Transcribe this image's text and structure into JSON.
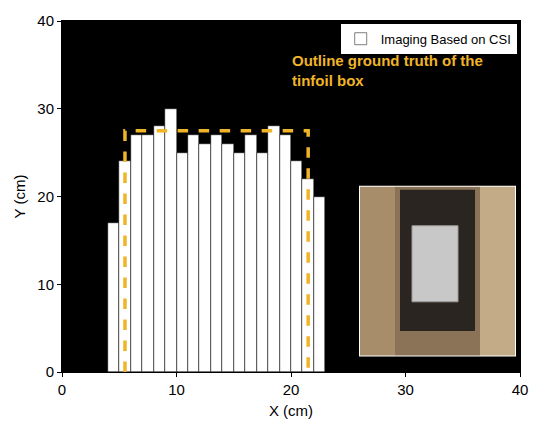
{
  "chart_data": {
    "type": "bar",
    "xlabel": "X (cm)",
    "ylabel": "Y (cm)",
    "xlim": [
      0,
      40
    ],
    "ylim": [
      0,
      40
    ],
    "xticks": [
      0,
      10,
      20,
      30,
      40
    ],
    "yticks": [
      0,
      10,
      20,
      30,
      40
    ],
    "grid": false,
    "legend": "upper right",
    "series": [
      {
        "name": "Imaging Based on CSI",
        "type": "bar",
        "color": "#ffffff",
        "x": [
          4.5,
          5.5,
          6.5,
          7.5,
          8.5,
          9.5,
          10.5,
          11.5,
          12.5,
          13.5,
          14.5,
          15.5,
          16.5,
          17.5,
          18.5,
          19.5,
          20.5,
          21.5,
          22.5
        ],
        "values": [
          17,
          24,
          27,
          27,
          28,
          30,
          25,
          27,
          26,
          27,
          26,
          25,
          27,
          25,
          28,
          27,
          24,
          22,
          20
        ]
      }
    ],
    "outline": {
      "x": [
        5.5,
        5.5,
        21.5,
        21.5
      ],
      "y": [
        0,
        27.5,
        27.5,
        0
      ],
      "color": "#f0b429",
      "line_style": "dashed"
    },
    "annotation": [
      "Outline ground truth of the",
      "tinfoil box"
    ]
  }
}
